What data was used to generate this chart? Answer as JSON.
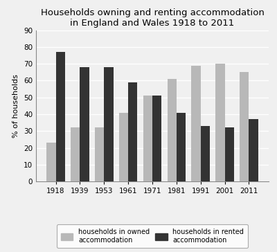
{
  "title": "Households owning and renting accommodation\nin England and Wales 1918 to 2011",
  "years": [
    "1918",
    "1939",
    "1953",
    "1961",
    "1971",
    "1981",
    "1991",
    "2001",
    "2011"
  ],
  "owned": [
    23,
    32,
    32,
    41,
    51,
    61,
    69,
    70,
    65
  ],
  "rented": [
    77,
    68,
    68,
    59,
    51,
    41,
    33,
    32,
    37
  ],
  "owned_color": "#b8b8b8",
  "rented_color": "#333333",
  "ylabel": "% of households",
  "ylim": [
    0,
    90
  ],
  "yticks": [
    0,
    10,
    20,
    30,
    40,
    50,
    60,
    70,
    80,
    90
  ],
  "legend_owned": "households in owned\naccommodation",
  "legend_rented": "households in rented\naccommodation",
  "title_fontsize": 9.5,
  "axis_fontsize": 8,
  "tick_fontsize": 7.5,
  "legend_fontsize": 7,
  "bar_width": 0.38,
  "bg_color": "#f0f0f0"
}
